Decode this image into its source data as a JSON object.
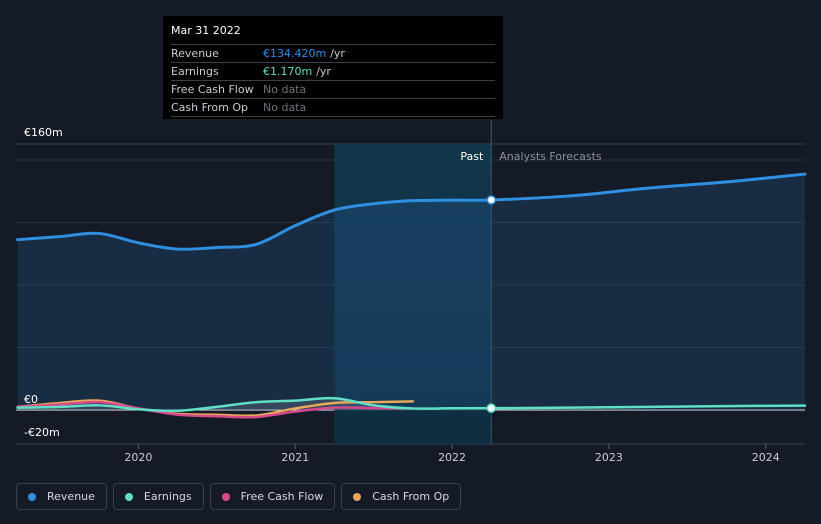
{
  "chart_data": {
    "type": "line",
    "y_axis": {
      "unit": "€",
      "ylim": [
        -20,
        160
      ],
      "tick_labels": [
        "€160m",
        "€0",
        "-€20m"
      ]
    },
    "x_axis": {
      "tick_labels": [
        "2020",
        "2021",
        "2022",
        "2023",
        "2024"
      ],
      "range": [
        2019.22,
        2024.25
      ]
    },
    "regions": {
      "past_label": "Past",
      "forecast_label": "Analysts Forecasts",
      "divider_x": 2022.25
    },
    "series": [
      {
        "name": "Revenue",
        "color": "#2f8fe0",
        "points": [
          [
            2019.23,
            109
          ],
          [
            2019.5,
            111
          ],
          [
            2019.75,
            113
          ],
          [
            2020.0,
            107
          ],
          [
            2020.25,
            103
          ],
          [
            2020.5,
            104
          ],
          [
            2020.75,
            106
          ],
          [
            2021.0,
            118
          ],
          [
            2021.25,
            128
          ],
          [
            2021.5,
            132
          ],
          [
            2021.75,
            134
          ],
          [
            2022.0,
            134.3
          ],
          [
            2022.25,
            134.42
          ],
          [
            2022.75,
            137
          ],
          [
            2023.25,
            142
          ],
          [
            2023.75,
            146
          ],
          [
            2024.25,
            151
          ]
        ]
      },
      {
        "name": "Earnings",
        "color": "#5fe0c6",
        "points": [
          [
            2019.23,
            1.5
          ],
          [
            2019.5,
            2
          ],
          [
            2019.75,
            3
          ],
          [
            2020.0,
            0.5
          ],
          [
            2020.25,
            -0.5
          ],
          [
            2020.5,
            2
          ],
          [
            2020.75,
            5
          ],
          [
            2021.0,
            6
          ],
          [
            2021.25,
            7.5
          ],
          [
            2021.5,
            3
          ],
          [
            2021.75,
            1
          ],
          [
            2022.0,
            1.1
          ],
          [
            2022.25,
            1.17
          ],
          [
            2022.75,
            1.5
          ],
          [
            2023.25,
            2
          ],
          [
            2023.75,
            2.5
          ],
          [
            2024.25,
            2.8
          ]
        ]
      },
      {
        "name": "Free Cash Flow",
        "color": "#d6498e",
        "points": [
          [
            2019.23,
            2
          ],
          [
            2019.5,
            3.5
          ],
          [
            2019.75,
            5
          ],
          [
            2020.0,
            1
          ],
          [
            2020.25,
            -3
          ],
          [
            2020.5,
            -4
          ],
          [
            2020.75,
            -4.5
          ],
          [
            2021.0,
            -1
          ],
          [
            2021.25,
            1.5
          ],
          [
            2021.5,
            1.2
          ],
          [
            2021.75,
            1
          ]
        ]
      },
      {
        "name": "Cash From Op",
        "color": "#e8a85a",
        "points": [
          [
            2019.23,
            2
          ],
          [
            2019.5,
            4.5
          ],
          [
            2019.75,
            6
          ],
          [
            2020.0,
            1
          ],
          [
            2020.25,
            -2.5
          ],
          [
            2020.5,
            -3
          ],
          [
            2020.75,
            -3.5
          ],
          [
            2021.0,
            1
          ],
          [
            2021.25,
            4.5
          ],
          [
            2021.5,
            5
          ],
          [
            2021.75,
            5.5
          ]
        ]
      }
    ]
  },
  "tooltip": {
    "date": "Mar 31 2022",
    "rows": [
      {
        "label": "Revenue",
        "value": "€134.420m",
        "unit": "/yr",
        "color": "#2f8fe0"
      },
      {
        "label": "Earnings",
        "value": "€1.170m",
        "unit": "/yr",
        "color": "#5fe0c6"
      },
      {
        "label": "Free Cash Flow",
        "value": "No data",
        "unit": ""
      },
      {
        "label": "Cash From Op",
        "value": "No data",
        "unit": ""
      }
    ]
  },
  "legend": [
    {
      "label": "Revenue",
      "color": "#2f8fe0"
    },
    {
      "label": "Earnings",
      "color": "#5fe0c6"
    },
    {
      "label": "Free Cash Flow",
      "color": "#d6498e"
    },
    {
      "label": "Cash From Op",
      "color": "#e8a85a"
    }
  ]
}
